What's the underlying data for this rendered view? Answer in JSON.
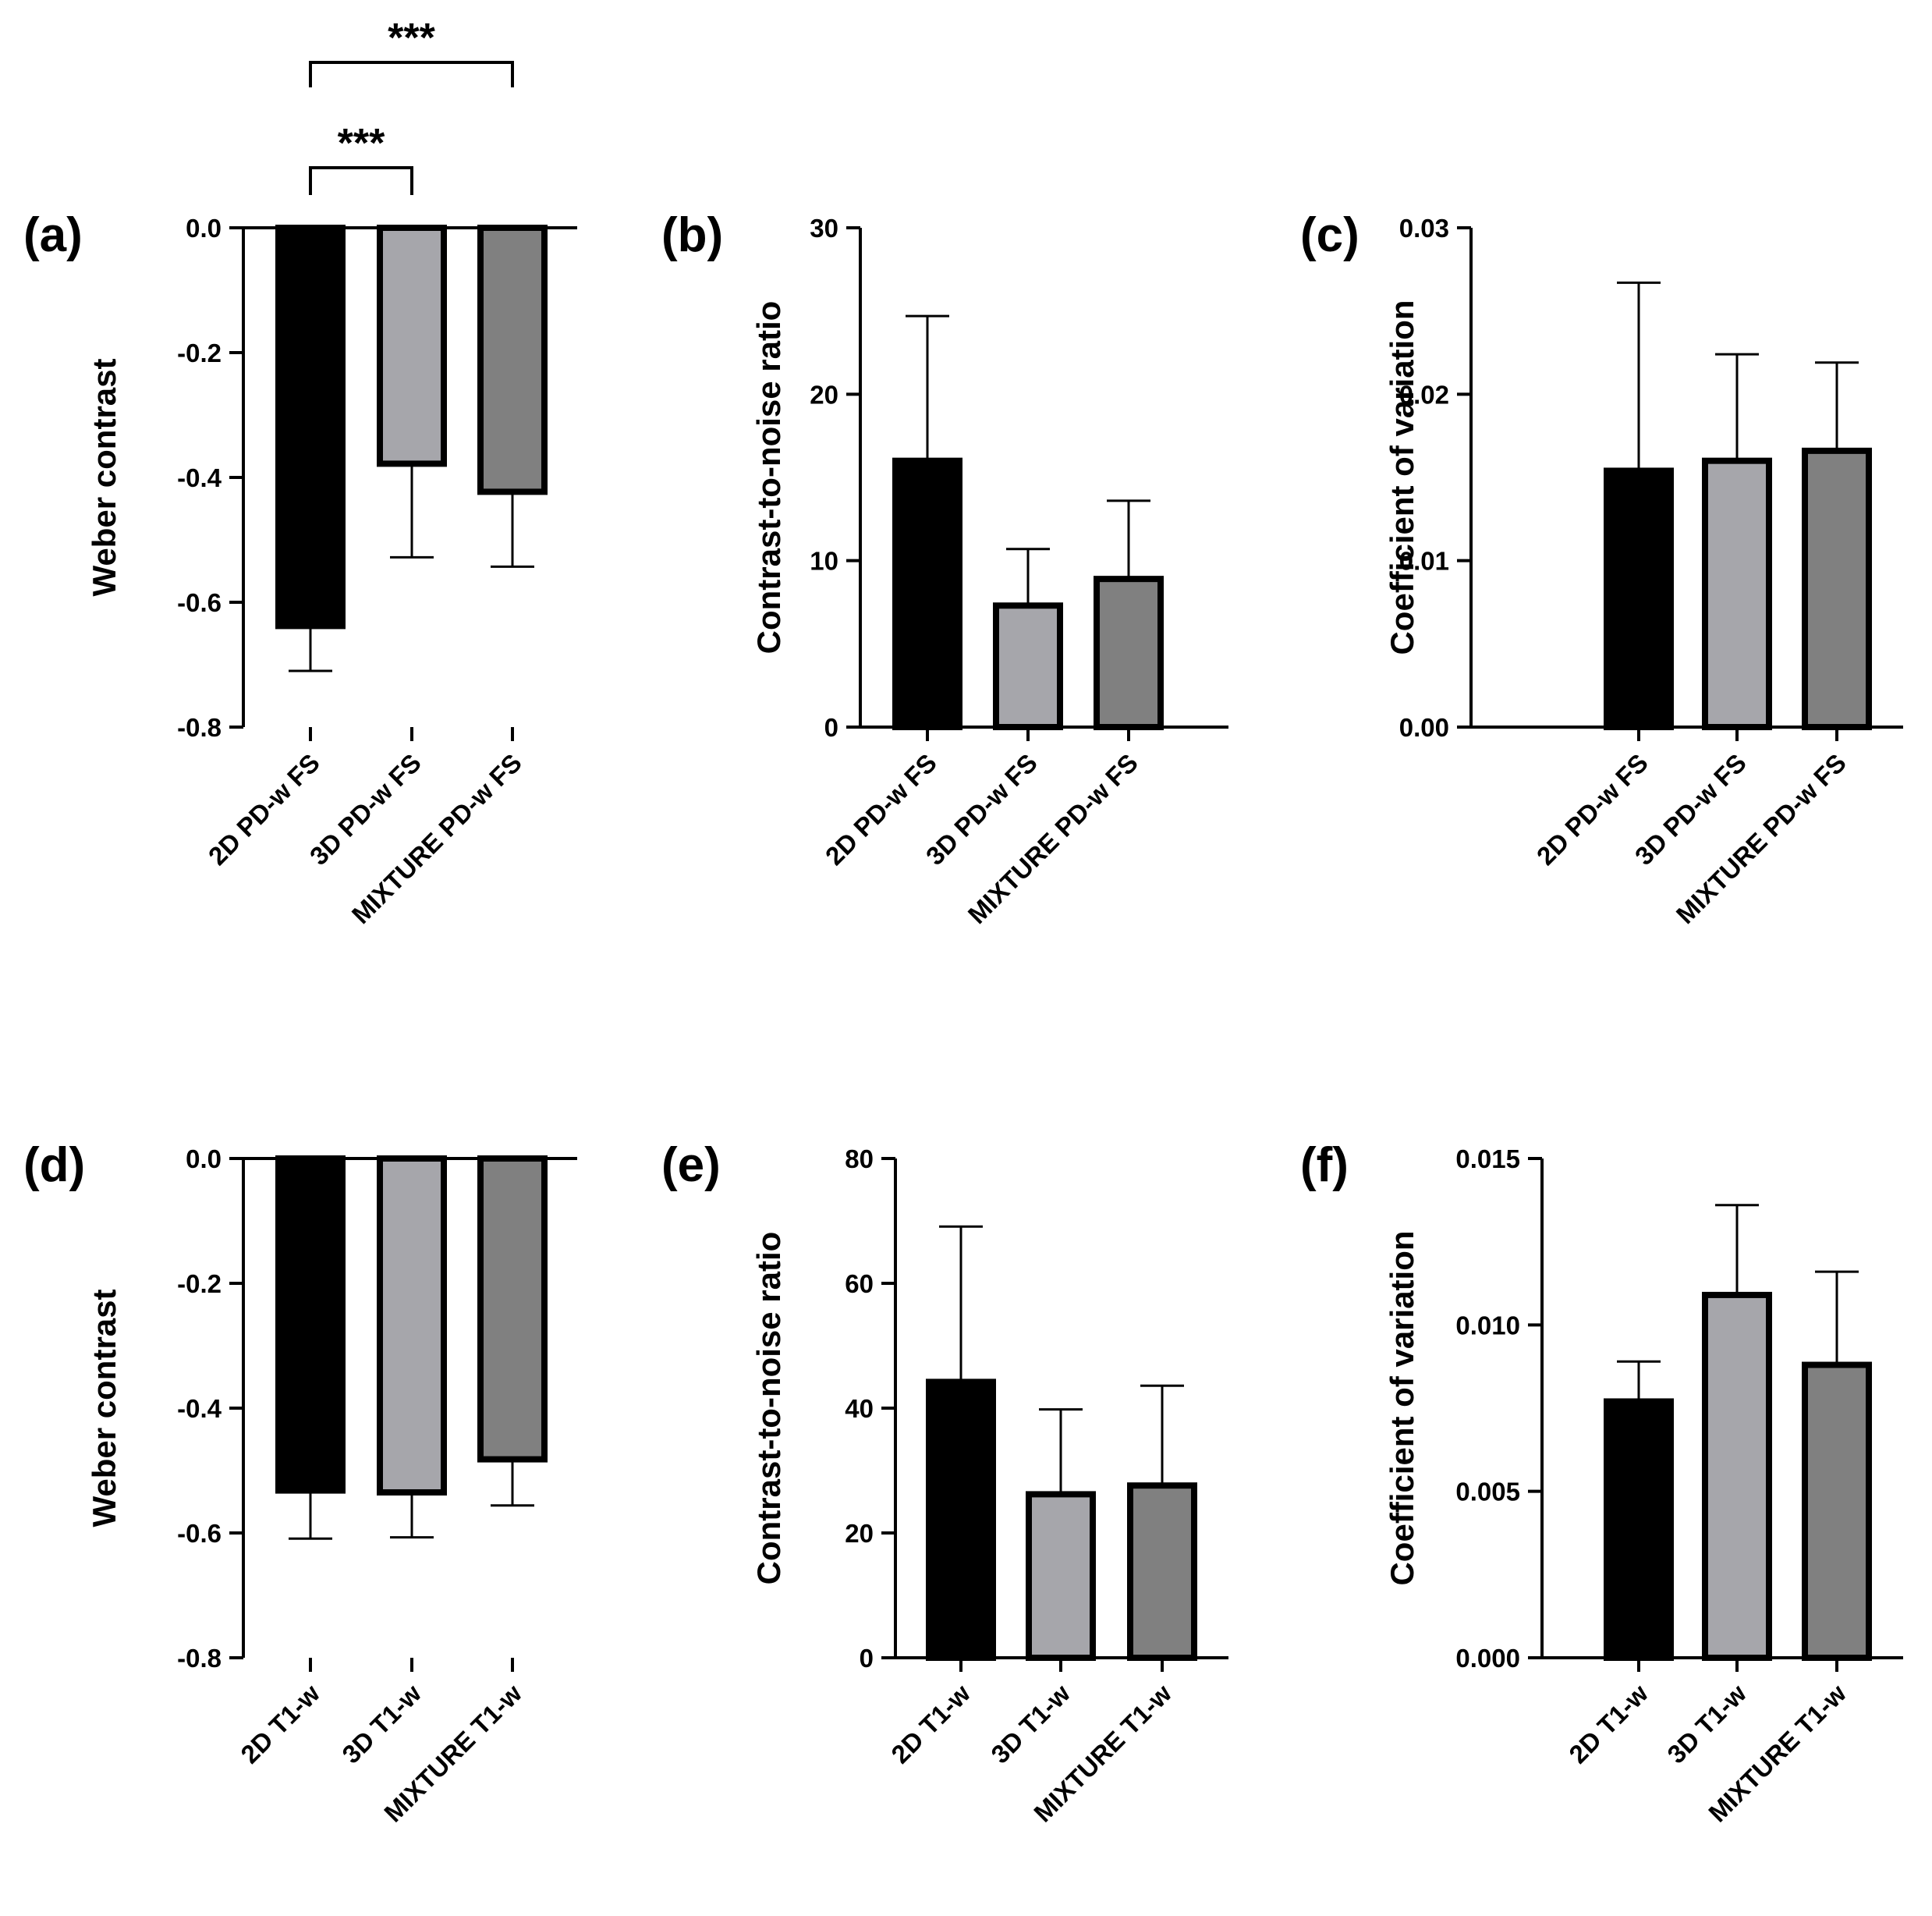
{
  "colors": {
    "bar_2d": "#000000",
    "bar_3d": "#a6a6ab",
    "bar_mixture": "#808080",
    "outline": "#000000"
  },
  "chart_data": [
    {
      "panel": "(a)",
      "type": "bar",
      "ylabel": "Weber contrast",
      "categories": [
        "2D PD-w FS",
        "3D PD-w FS",
        "MIXTURE PD-w FS"
      ],
      "values": [
        -0.638,
        -0.378,
        -0.423
      ],
      "errors": [
        0.072,
        0.15,
        0.12
      ],
      "ylim": [
        -0.8,
        0.0
      ],
      "ticks": [
        0.0,
        -0.2,
        -0.4,
        -0.6,
        -0.8
      ],
      "tick_labels": [
        "0.0",
        "-0.2",
        "-0.4",
        "-0.6",
        "-0.8"
      ],
      "significance": [
        {
          "from": 0,
          "to": 1,
          "label": "***"
        },
        {
          "from": 0,
          "to": 2,
          "label": "***"
        }
      ]
    },
    {
      "panel": "(b)",
      "type": "bar",
      "ylabel": "Contrast-to-noise ratio",
      "categories": [
        "2D PD-w FS",
        "3D PD-w FS",
        "MIXTURE PD-w FS"
      ],
      "values": [
        16.0,
        7.3,
        8.9
      ],
      "errors": [
        8.7,
        3.4,
        4.7
      ],
      "ylim": [
        0,
        30
      ],
      "ticks": [
        0,
        10,
        20,
        30
      ],
      "tick_labels": [
        "0",
        "10",
        "20",
        "30"
      ]
    },
    {
      "panel": "(c)",
      "type": "bar",
      "ylabel": "Coefficient of variation",
      "categories": [
        "2D PD-w FS",
        "3D PD-w FS",
        "MIXTURE PD-w FS"
      ],
      "values": [
        0.0154,
        0.016,
        0.0166
      ],
      "errors": [
        0.0113,
        0.0064,
        0.0053
      ],
      "ylim": [
        0,
        0.03
      ],
      "ticks": [
        0.0,
        0.01,
        0.02,
        0.03
      ],
      "tick_labels": [
        "0.00",
        "0.01",
        "0.02",
        "0.03"
      ]
    },
    {
      "panel": "(d)",
      "type": "bar",
      "ylabel": "Weber contrast",
      "categories": [
        "2D T1-w",
        "3D T1-w",
        "MIXTURE T1-w"
      ],
      "values": [
        -0.532,
        -0.535,
        -0.482
      ],
      "errors": [
        0.077,
        0.072,
        0.074
      ],
      "ylim": [
        -0.8,
        0.0
      ],
      "ticks": [
        0.0,
        -0.2,
        -0.4,
        -0.6,
        -0.8
      ],
      "tick_labels": [
        "0.0",
        "-0.2",
        "-0.4",
        "-0.6",
        "-0.8"
      ]
    },
    {
      "panel": "(e)",
      "type": "bar",
      "ylabel": "Contrast-to-noise ratio",
      "categories": [
        "2D T1-w",
        "3D T1-w",
        "MIXTURE T1-w"
      ],
      "values": [
        44.2,
        26.2,
        27.6
      ],
      "errors": [
        24.9,
        13.6,
        16.0
      ],
      "ylim": [
        0,
        80
      ],
      "ticks": [
        0,
        20,
        40,
        60,
        80
      ],
      "tick_labels": [
        "0",
        "20",
        "40",
        "60",
        "80"
      ]
    },
    {
      "panel": "(f)",
      "type": "bar",
      "ylabel": "Coefficient of variation",
      "categories": [
        "2D T1-w",
        "3D T1-w",
        "MIXTURE T1-w"
      ],
      "values": [
        0.0077,
        0.0109,
        0.0088
      ],
      "errors": [
        0.0012,
        0.0027,
        0.0028
      ],
      "ylim": [
        0,
        0.015
      ],
      "ticks": [
        0.0,
        0.005,
        0.01,
        0.015
      ],
      "tick_labels": [
        "0.000",
        "0.005",
        "0.010",
        "0.015"
      ]
    }
  ]
}
